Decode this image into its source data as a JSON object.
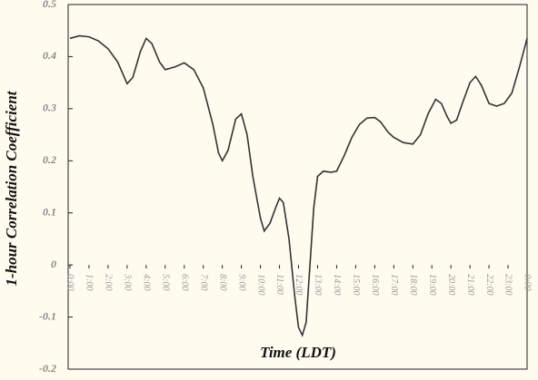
{
  "chart_data": {
    "type": "line",
    "x_label": "Time (LDT)",
    "y_label": "1-hour Correlation Coefficient",
    "x": [
      0,
      0.5,
      1,
      1.5,
      2,
      2.5,
      3,
      3.3,
      3.7,
      4,
      4.3,
      4.7,
      5,
      5.5,
      6,
      6.5,
      7,
      7.5,
      7.8,
      8,
      8.3,
      8.7,
      9,
      9.3,
      9.6,
      10,
      10.2,
      10.5,
      10.8,
      11,
      11.2,
      11.5,
      11.8,
      12,
      12.2,
      12.4,
      12.6,
      12.8,
      13,
      13.3,
      13.7,
      14,
      14.4,
      14.8,
      15.2,
      15.6,
      16,
      16.3,
      16.7,
      17,
      17.5,
      18,
      18.4,
      18.8,
      19.2,
      19.5,
      19.8,
      20,
      20.3,
      20.6,
      21,
      21.3,
      21.6,
      22,
      22.4,
      22.8,
      23.2,
      23.6,
      24
    ],
    "values": [
      0.435,
      0.44,
      0.438,
      0.43,
      0.415,
      0.39,
      0.348,
      0.36,
      0.41,
      0.435,
      0.425,
      0.39,
      0.375,
      0.38,
      0.388,
      0.375,
      0.34,
      0.27,
      0.215,
      0.2,
      0.22,
      0.28,
      0.29,
      0.25,
      0.17,
      0.09,
      0.065,
      0.08,
      0.11,
      0.128,
      0.12,
      0.05,
      -0.06,
      -0.12,
      -0.135,
      -0.11,
      0,
      0.11,
      0.17,
      0.18,
      0.178,
      0.18,
      0.21,
      0.245,
      0.27,
      0.282,
      0.283,
      0.275,
      0.255,
      0.245,
      0.235,
      0.232,
      0.25,
      0.29,
      0.318,
      0.31,
      0.285,
      0.272,
      0.278,
      0.31,
      0.35,
      0.362,
      0.345,
      0.31,
      0.305,
      0.31,
      0.33,
      0.38,
      0.435
    ],
    "color": "#333333",
    "xlim": [
      0,
      24
    ],
    "xticks": [
      {
        "value": 0,
        "label": "0:00"
      },
      {
        "value": 1,
        "label": "1:00"
      },
      {
        "value": 2,
        "label": "2:00"
      },
      {
        "value": 3,
        "label": "3:00"
      },
      {
        "value": 4,
        "label": "4:00"
      },
      {
        "value": 5,
        "label": "5:00"
      },
      {
        "value": 6,
        "label": "6:00"
      },
      {
        "value": 7,
        "label": "7:00"
      },
      {
        "value": 8,
        "label": "8:00"
      },
      {
        "value": 9,
        "label": "9:00"
      },
      {
        "value": 10,
        "label": "10:00"
      },
      {
        "value": 11,
        "label": "11:00"
      },
      {
        "value": 12,
        "label": "12:00"
      },
      {
        "value": 13,
        "label": "13:00"
      },
      {
        "value": 14,
        "label": "14:00"
      },
      {
        "value": 15,
        "label": "15:00"
      },
      {
        "value": 16,
        "label": "16:00"
      },
      {
        "value": 17,
        "label": "17:00"
      },
      {
        "value": 18,
        "label": "18:00"
      },
      {
        "value": 19,
        "label": "19:00"
      },
      {
        "value": 20,
        "label": "20:00"
      },
      {
        "value": 21,
        "label": "21:00"
      },
      {
        "value": 22,
        "label": "22:00"
      },
      {
        "value": 23,
        "label": "23:00"
      },
      {
        "value": 24,
        "label": "0:00"
      }
    ],
    "ylim": [
      -0.2,
      0.5
    ],
    "yticks": [
      -0.2,
      -0.1,
      0,
      0.1,
      0.2,
      0.3,
      0.4,
      0.5
    ],
    "grid": false
  }
}
